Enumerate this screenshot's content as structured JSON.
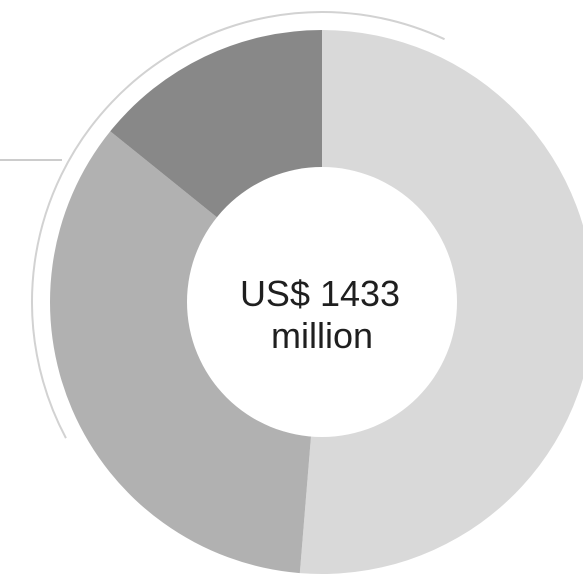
{
  "chart_data": {
    "type": "pie",
    "variant": "donut",
    "title": "",
    "center_label": {
      "line1": "US$ 1433",
      "line2": "million"
    },
    "slices": [
      {
        "value": 51.3,
        "color": "#d9d9d9"
      },
      {
        "value": 34.5,
        "color": "#b1b1b1"
      },
      {
        "value": 14.2,
        "color": "#888888"
      }
    ]
  },
  "colors": {
    "background": "#ffffff",
    "center_hole": "#ffffff",
    "decorative_arc": "#d2d2d2",
    "leader_line": "#cccccc",
    "text": "#1f1f1f"
  }
}
